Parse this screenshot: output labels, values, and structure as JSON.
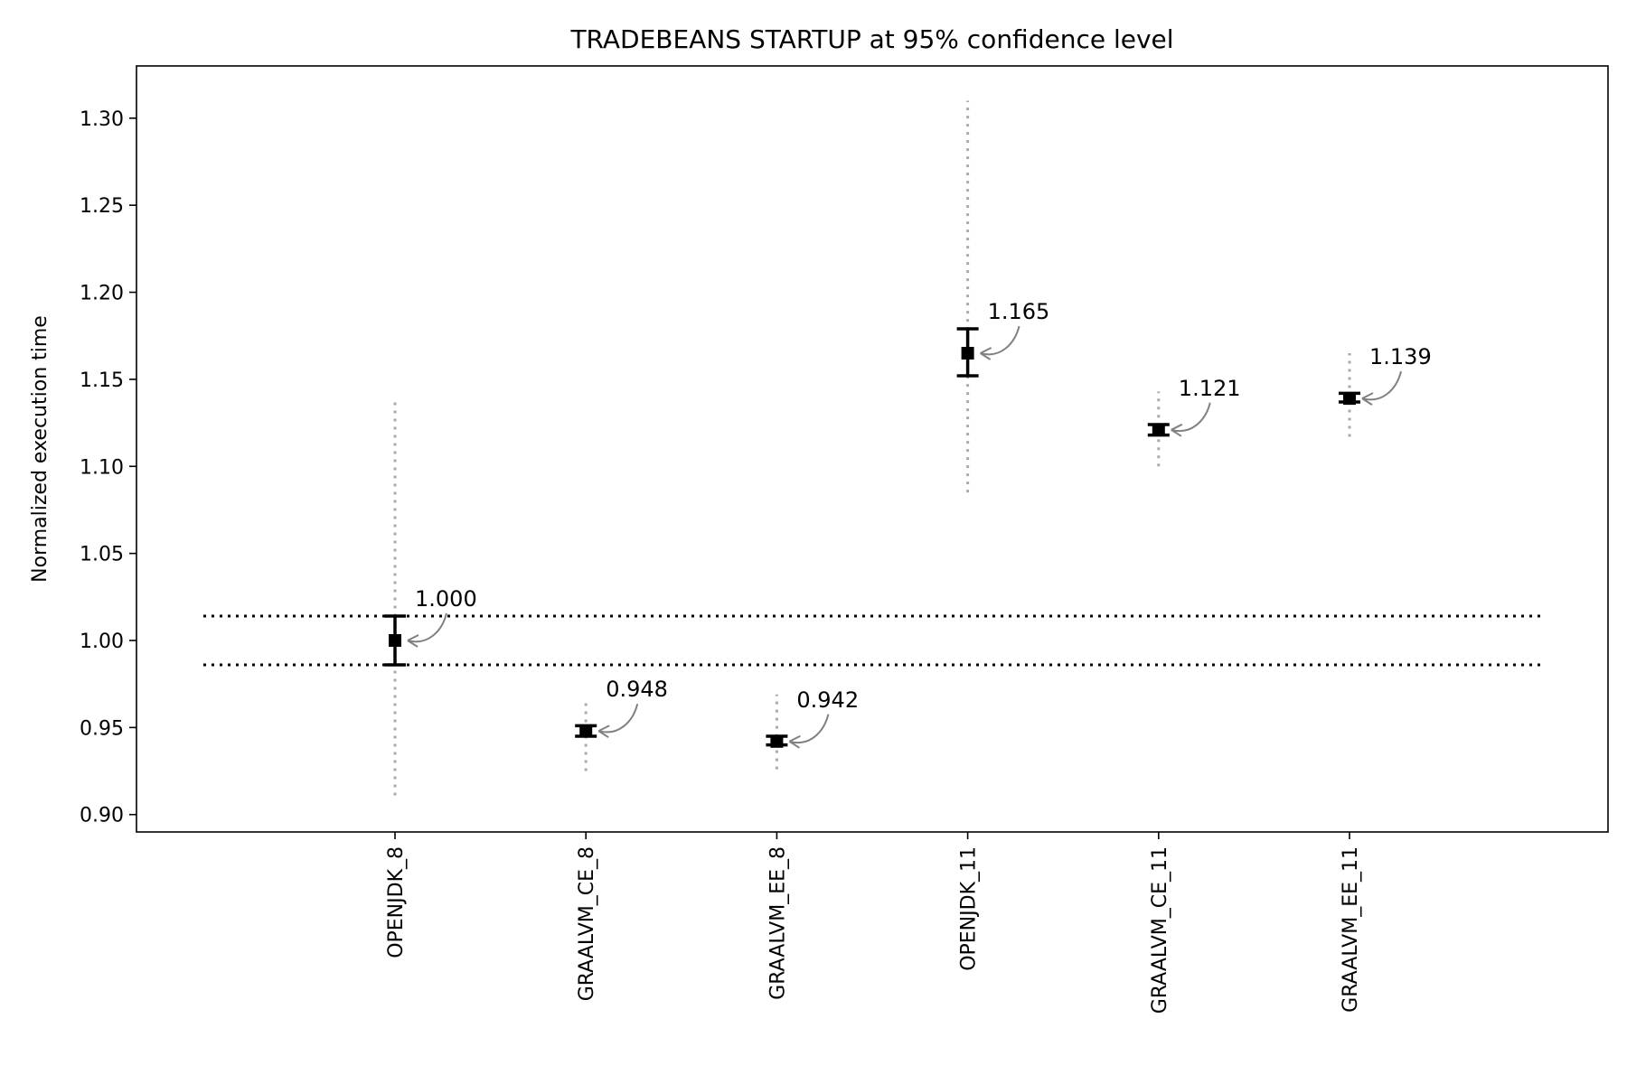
{
  "chart_data": {
    "type": "scatter",
    "title": "TRADEBEANS STARTUP at 95% confidence level",
    "ylabel": "Normalized execution time",
    "xlabel": "",
    "ylim": [
      0.89,
      1.33
    ],
    "yticks": [
      0.9,
      0.95,
      1.0,
      1.05,
      1.1,
      1.15,
      1.2,
      1.25,
      1.3
    ],
    "ytick_labels": [
      "0.90",
      "0.95",
      "1.00",
      "1.05",
      "1.10",
      "1.15",
      "1.20",
      "1.25",
      "1.30"
    ],
    "categories": [
      "OPENJDK_8",
      "GRAALVM_CE_8",
      "GRAALVM_EE_8",
      "OPENJDK_11",
      "GRAALVM_CE_11",
      "GRAALVM_EE_11"
    ],
    "points": [
      {
        "mean": 1.0,
        "label": "1.000",
        "ci": [
          0.986,
          1.014
        ],
        "range": [
          0.911,
          1.137
        ]
      },
      {
        "mean": 0.948,
        "label": "0.948",
        "ci": [
          0.945,
          0.951
        ],
        "range": [
          0.925,
          0.967
        ]
      },
      {
        "mean": 0.942,
        "label": "0.942",
        "ci": [
          0.94,
          0.945
        ],
        "range": [
          0.926,
          0.969
        ]
      },
      {
        "mean": 1.165,
        "label": "1.165",
        "ci": [
          1.152,
          1.179
        ],
        "range": [
          1.085,
          1.31
        ]
      },
      {
        "mean": 1.121,
        "label": "1.121",
        "ci": [
          1.118,
          1.124
        ],
        "range": [
          1.1,
          1.143
        ]
      },
      {
        "mean": 1.139,
        "label": "1.139",
        "ci": [
          1.137,
          1.142
        ],
        "range": [
          1.117,
          1.165
        ]
      }
    ],
    "reference_lines": [
      0.986,
      1.014
    ],
    "grid": false,
    "colors": {
      "marker": "#000000",
      "range": "#aaaaaa",
      "annotation_arrow": "#808080",
      "reference": "#000000"
    }
  }
}
